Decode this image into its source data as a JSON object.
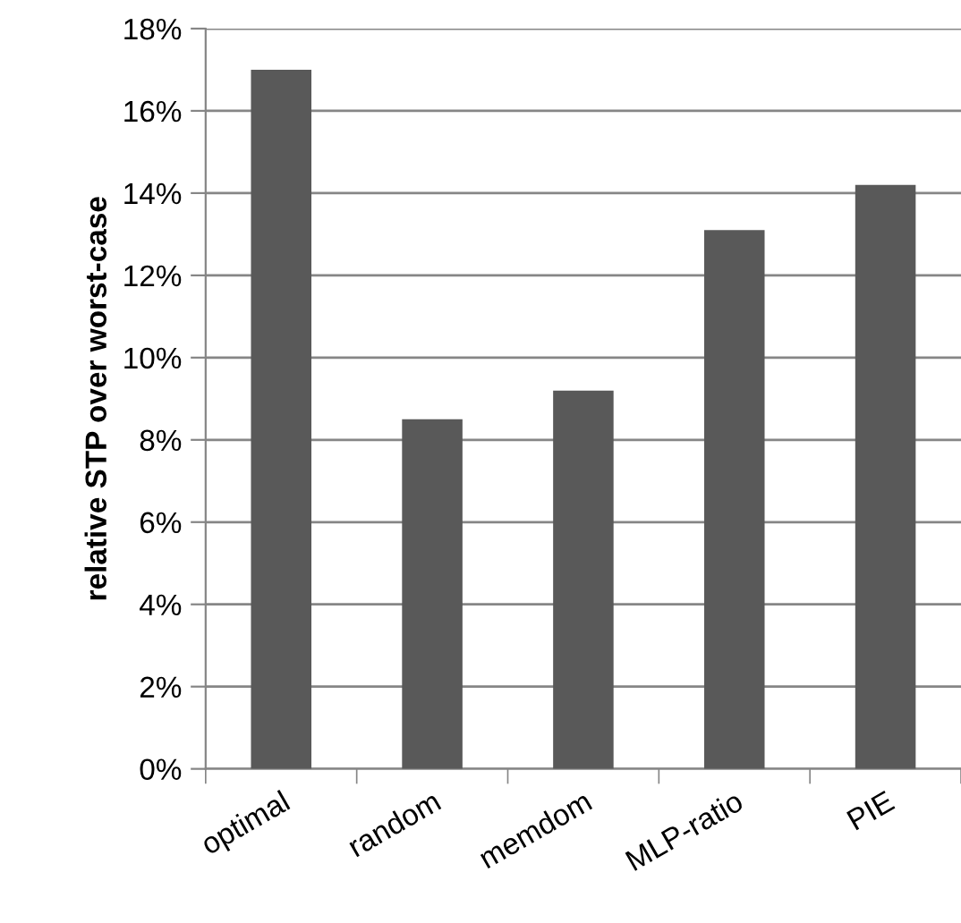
{
  "chart_data": {
    "type": "bar",
    "ylabel": "relative STP over worst-case",
    "categories": [
      "optimal",
      "random",
      "memdom",
      "MLP-ratio",
      "PIE"
    ],
    "values": [
      17.0,
      8.5,
      9.2,
      13.1,
      14.2
    ],
    "color": "#595959",
    "ylim": [
      0,
      18
    ],
    "yticks": [
      {
        "value": 0,
        "label": "0%"
      },
      {
        "value": 2,
        "label": "2%"
      },
      {
        "value": 4,
        "label": "4%"
      },
      {
        "value": 6,
        "label": "6%"
      },
      {
        "value": 8,
        "label": "8%"
      },
      {
        "value": 10,
        "label": "10%"
      },
      {
        "value": 12,
        "label": "12%"
      },
      {
        "value": 14,
        "label": "14%"
      },
      {
        "value": 16,
        "label": "16%"
      },
      {
        "value": 18,
        "label": "18%"
      }
    ],
    "grid": "y",
    "legend": false
  }
}
